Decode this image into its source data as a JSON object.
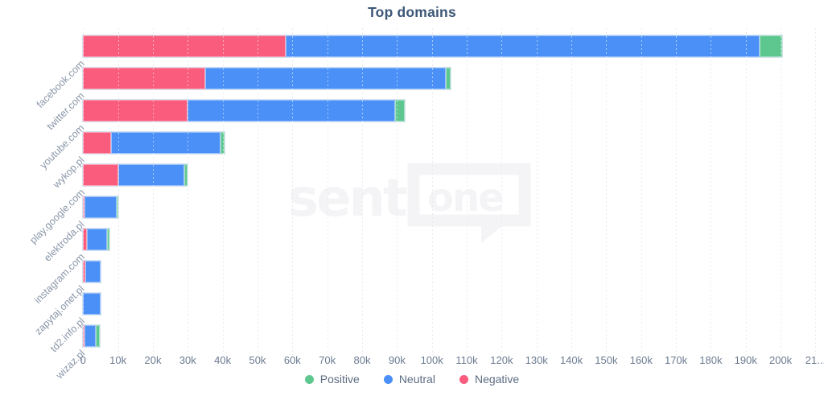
{
  "chart_data": {
    "type": "bar",
    "variant": "horizontal-stacked",
    "title": "Top domains",
    "categories": [
      "facebook.com",
      "twitter.com",
      "youtube.com",
      "wykop.pl",
      "play.google.com",
      "elektroda.pl",
      "instagram.com",
      "zapytaj.onet.pl",
      "td2.info.pl",
      "wizaz.pl"
    ],
    "series": [
      {
        "name": "Negative",
        "color": "#f95c7d",
        "values": [
          58000,
          35000,
          30000,
          7900,
          10000,
          400,
          1200,
          600,
          0,
          500
        ]
      },
      {
        "name": "Neutral",
        "color": "#4a90f7",
        "values": [
          136000,
          69000,
          59500,
          31400,
          19100,
          9300,
          5600,
          4400,
          4900,
          3100
        ]
      },
      {
        "name": "Positive",
        "color": "#5dc78f",
        "values": [
          6400,
          1300,
          2700,
          1300,
          800,
          500,
          700,
          0,
          0,
          1100
        ]
      }
    ],
    "totals": [
      200400,
      105300,
      92200,
      40600,
      29900,
      10200,
      7500,
      5000,
      4900,
      4700
    ],
    "xlim": [
      0,
      212000
    ],
    "x_tick_step": 10000,
    "x_tick_labels": [
      "0",
      "10k",
      "20k",
      "30k",
      "40k",
      "50k",
      "60k",
      "70k",
      "80k",
      "90k",
      "100k",
      "110k",
      "120k",
      "130k",
      "140k",
      "150k",
      "160k",
      "170k",
      "180k",
      "190k",
      "200k",
      "21..."
    ],
    "grid": "dotted-vertical",
    "legend": {
      "position": "bottom",
      "items": [
        {
          "label": "Positive",
          "color": "#5dc78f"
        },
        {
          "label": "Neutral",
          "color": "#4a90f7"
        },
        {
          "label": "Negative",
          "color": "#f95c7d"
        }
      ]
    }
  },
  "watermark": {
    "left": "senti",
    "right": "one"
  },
  "colors": {
    "positive": "#5dc78f",
    "neutral": "#4a90f7",
    "negative": "#f95c7d",
    "title": "#3d5876",
    "tick_label": "#6b7b91",
    "category_label": "#8a96a9",
    "legend_text": "#5c6c82",
    "gridline": "#cdd3da",
    "watermark": "#f4f4f6"
  }
}
